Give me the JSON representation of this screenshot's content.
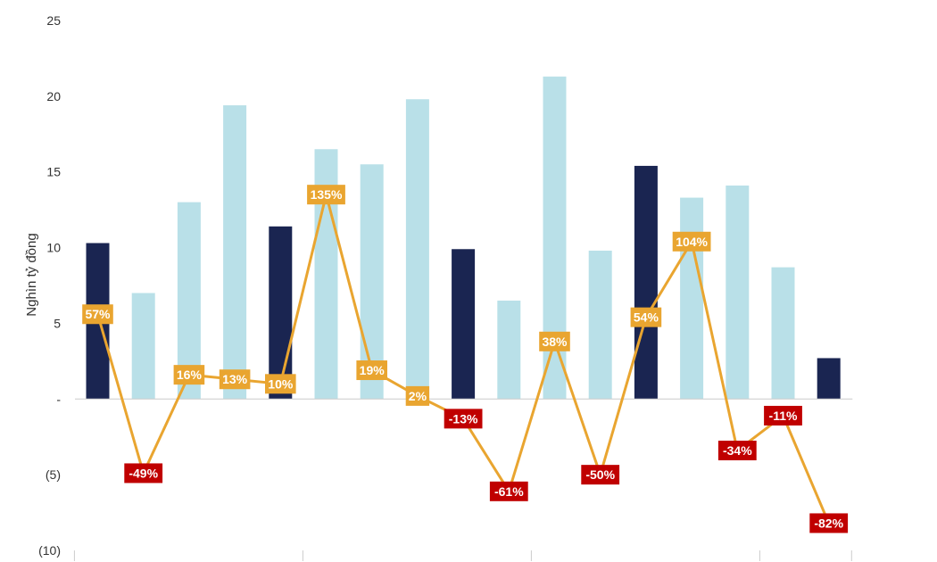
{
  "chart_data": {
    "type": "bar",
    "title": "",
    "xlabel": "",
    "ylabel": "Nghìn tỷ đồng",
    "ylim": [
      -10,
      25
    ],
    "yticks": [
      25,
      20,
      15,
      10,
      5,
      0,
      -5,
      -10
    ],
    "ytick_labels": [
      "25",
      "20",
      "15",
      "10",
      "5",
      "-",
      "(5)",
      "(10)"
    ],
    "grid": false,
    "legend": "none",
    "n_groups": 4,
    "categories": [
      "",
      "",
      "",
      "",
      "",
      "",
      "",
      "",
      "",
      "",
      "",
      "",
      "",
      "",
      "",
      "",
      ""
    ],
    "series": [
      {
        "type": "bar",
        "values": [
          10.3,
          7.0,
          13.0,
          19.4,
          11.4,
          16.5,
          15.5,
          19.8,
          9.9,
          6.5,
          21.3,
          9.8,
          15.4,
          13.3,
          14.1,
          8.7,
          2.7
        ],
        "bar_colors": [
          "#1a2551",
          "#b9e0e8",
          "#b9e0e8",
          "#b9e0e8",
          "#1a2551",
          "#b9e0e8",
          "#b9e0e8",
          "#b9e0e8",
          "#1a2551",
          "#b9e0e8",
          "#b9e0e8",
          "#b9e0e8",
          "#1a2551",
          "#b9e0e8",
          "#b9e0e8",
          "#b9e0e8",
          "#1a2551"
        ]
      },
      {
        "type": "line",
        "color": "#e9a530",
        "negative_label_color": "#c00000",
        "values_pct": [
          57,
          -49,
          16,
          13,
          10,
          135,
          19,
          2,
          -13,
          -61,
          38,
          -50,
          54,
          104,
          -34,
          -11,
          -82
        ],
        "labels": [
          "57%",
          "-49%",
          "16%",
          "13%",
          "10%",
          "135%",
          "19%",
          "2%",
          "-13%",
          "-61%",
          "38%",
          "-50%",
          "54%",
          "104%",
          "-34%",
          "-11%",
          "-82%"
        ],
        "plot_levels": [
          5.6,
          -4.9,
          1.6,
          1.3,
          1.0,
          13.5,
          1.9,
          0.2,
          -1.3,
          -6.1,
          3.8,
          -5.0,
          5.4,
          10.4,
          -3.4,
          -1.1,
          -8.2
        ]
      }
    ]
  }
}
